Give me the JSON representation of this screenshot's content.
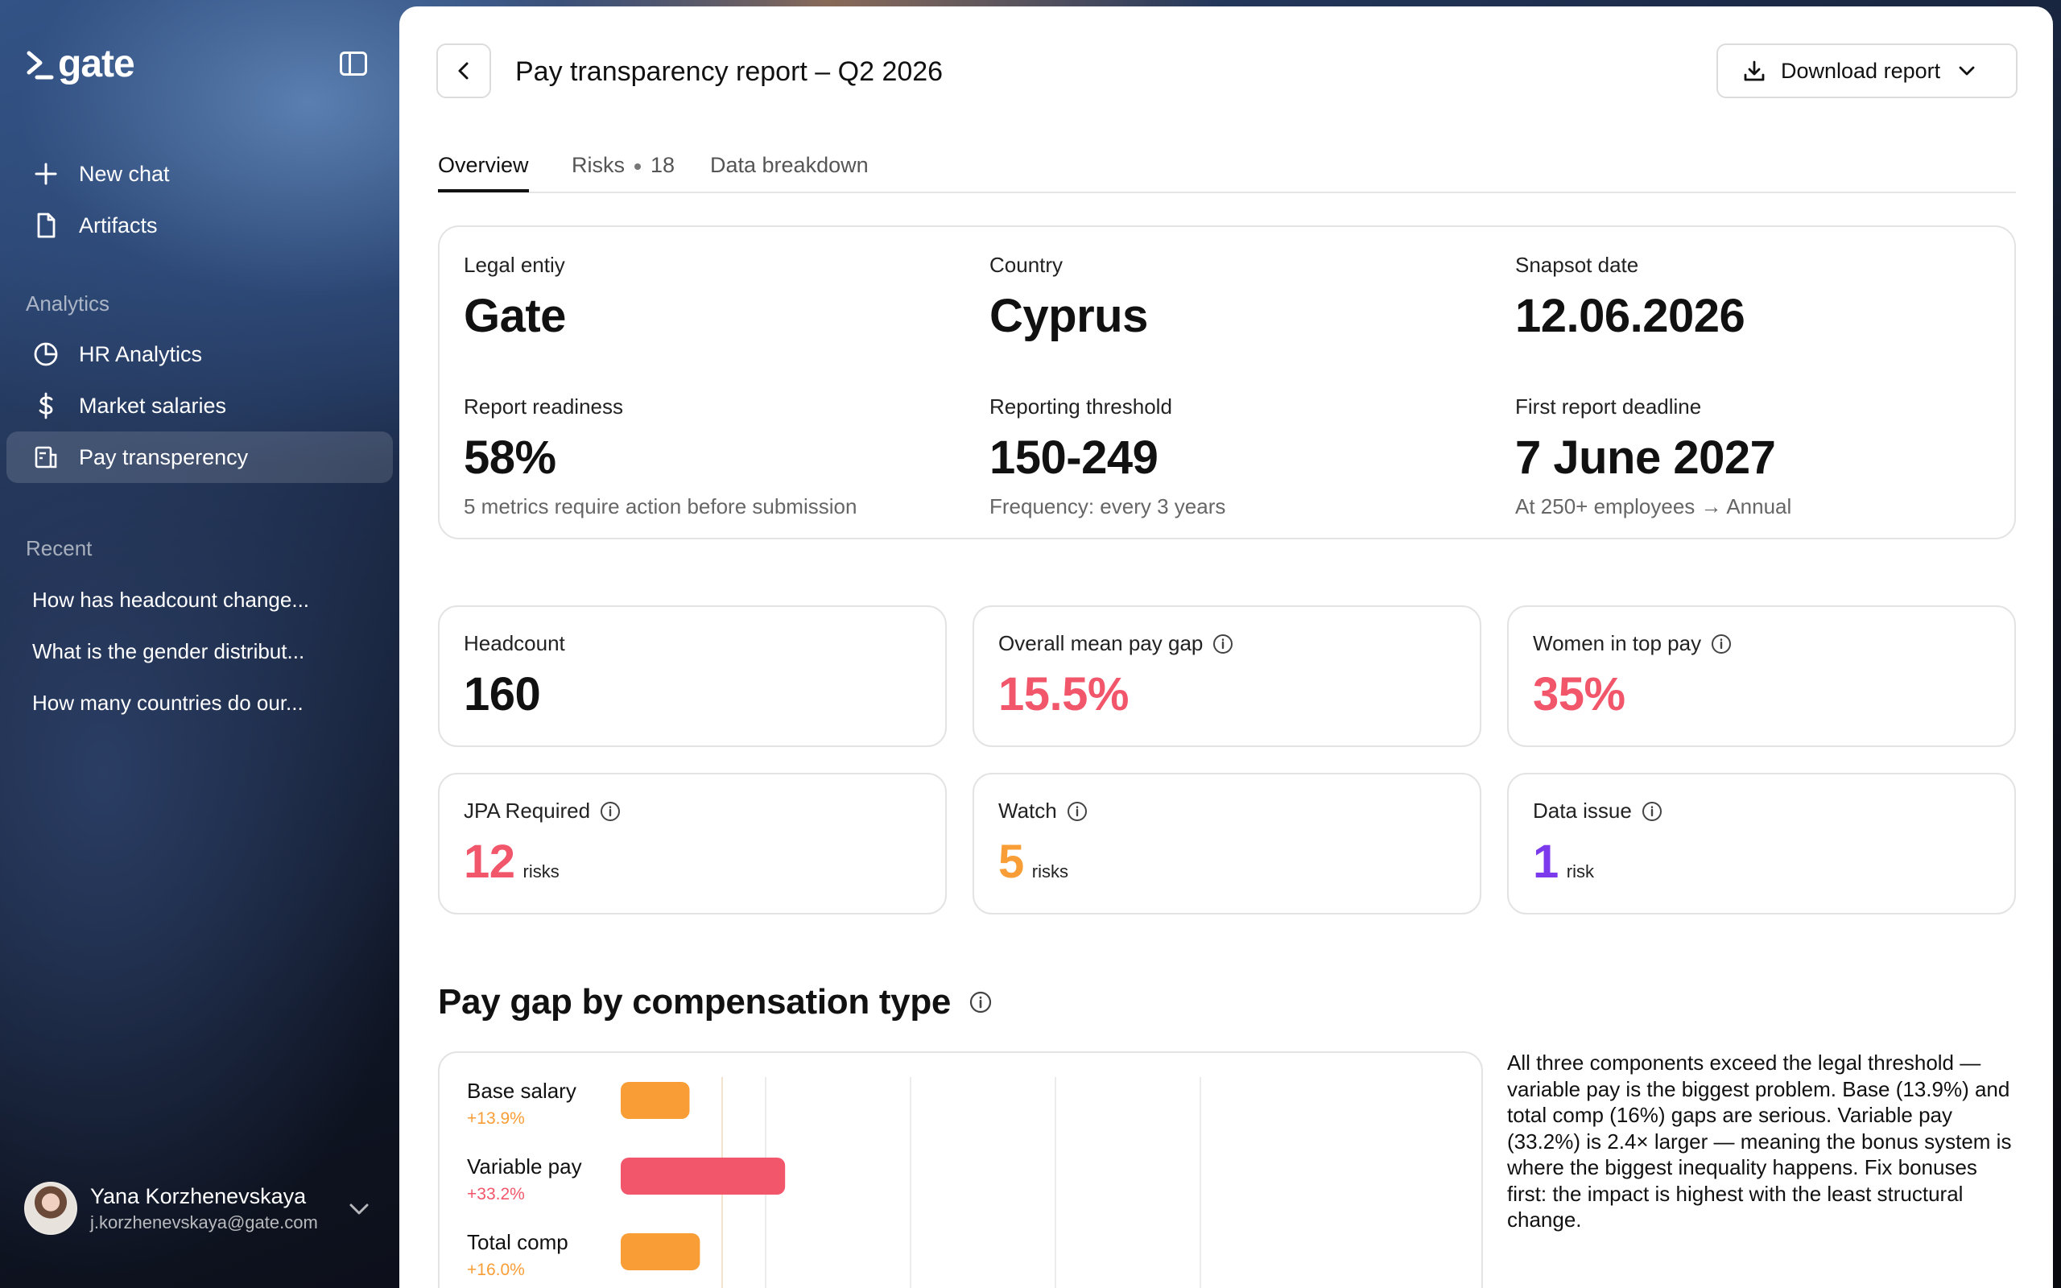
{
  "app": {
    "name": "gate"
  },
  "sidebar": {
    "nav": [
      {
        "label": "New chat",
        "icon": "plus-icon"
      },
      {
        "label": "Artifacts",
        "icon": "document-icon"
      }
    ],
    "analytics_label": "Analytics",
    "analytics": [
      {
        "label": "HR Analytics",
        "icon": "pie-chart-icon"
      },
      {
        "label": "Market salaries",
        "icon": "dollar-icon"
      },
      {
        "label": "Pay transperency",
        "icon": "report-icon",
        "active": true
      }
    ],
    "recent_label": "Recent",
    "recent": [
      "How has headcount change...",
      "What is the gender distribut...",
      "How many countries do our..."
    ],
    "user": {
      "name": "Yana Korzhenevskaya",
      "email": "j.korzhenevskaya@gate.com"
    }
  },
  "header": {
    "title": "Pay transparency report – Q2 2026",
    "download_label": "Download report"
  },
  "tabs": {
    "overview": "Overview",
    "risks": "Risks",
    "risks_count": "18",
    "breakdown": "Data breakdown"
  },
  "info": {
    "legal_entity": {
      "label": "Legal entiy",
      "value": "Gate"
    },
    "country": {
      "label": "Country",
      "value": "Cyprus"
    },
    "snapshot": {
      "label": "Snapsot date",
      "value": "12.06.2026"
    },
    "readiness": {
      "label": "Report readiness",
      "value": "58%",
      "sub": "5 metrics require action before submission"
    },
    "threshold": {
      "label": "Reporting threshold",
      "value": "150-249",
      "sub": "Frequency: every 3 years"
    },
    "deadline": {
      "label": "First report deadline",
      "value": "7 June 2027",
      "sub": "At 250+ employees → Annual"
    }
  },
  "stats": {
    "headcount": {
      "label": "Headcount",
      "value": "160"
    },
    "mean_gap": {
      "label": "Overall mean pay gap",
      "value": "15.5%"
    },
    "women_top": {
      "label": "Women in top pay",
      "value": "35%"
    },
    "jpa": {
      "label": "JPA Required",
      "value": "12",
      "unit": "risks"
    },
    "watch": {
      "label": "Watch",
      "value": "5",
      "unit": "risks"
    },
    "data_issue": {
      "label": "Data issue",
      "value": "1",
      "unit": "risk"
    }
  },
  "colors": {
    "red": "#f2566b",
    "orange": "#f99d36",
    "purple": "#7c3aed"
  },
  "section": {
    "title": "Pay gap by compensation type",
    "explanation": "All three components exceed the legal threshold — variable pay is the biggest problem. Base (13.9%) and total comp (16%) gaps are serious. Variable pay (33.2%) is 2.4× larger — meaning the bonus system is where the biggest inequality happens. Fix bonuses first: the impact is highest with the least structural change."
  },
  "chart_data": {
    "type": "bar",
    "orientation": "horizontal",
    "categories": [
      "Base salary",
      "Variable pay",
      "Total comp"
    ],
    "values": [
      13.9,
      33.2,
      16.0
    ],
    "value_labels": [
      "+13.9%",
      "+33.2%",
      "+16.0%"
    ],
    "colors": [
      "#f99d36",
      "#f2566b",
      "#f99d36"
    ],
    "xlim": [
      0,
      100
    ],
    "grid": true
  }
}
